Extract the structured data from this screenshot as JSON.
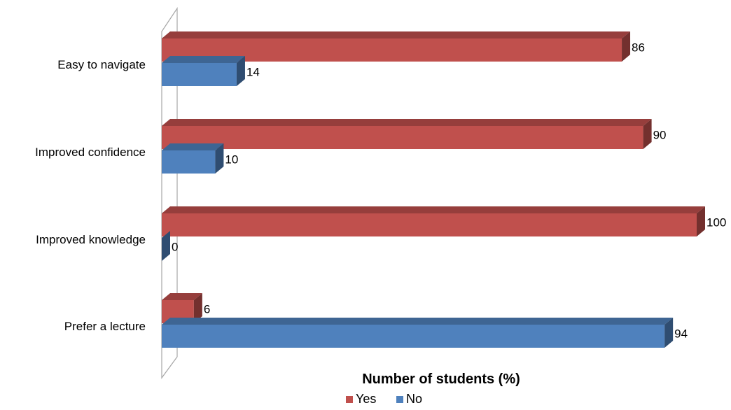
{
  "chart_data": {
    "type": "bar",
    "orientation": "horizontal",
    "categories": [
      "Easy to navigate",
      "Improved confidence",
      "Improved knowledge",
      "Prefer a lecture"
    ],
    "series": [
      {
        "name": "Yes",
        "color": "#c0504d",
        "values": [
          86,
          90,
          100,
          6
        ]
      },
      {
        "name": "No",
        "color": "#4f81bd",
        "values": [
          14,
          10,
          0,
          94
        ]
      }
    ],
    "data_labels": true,
    "xlabel": "Number of students (%)",
    "xlim": [
      0,
      100
    ],
    "grid": false,
    "legend_position": "bottom",
    "style": "3d"
  }
}
